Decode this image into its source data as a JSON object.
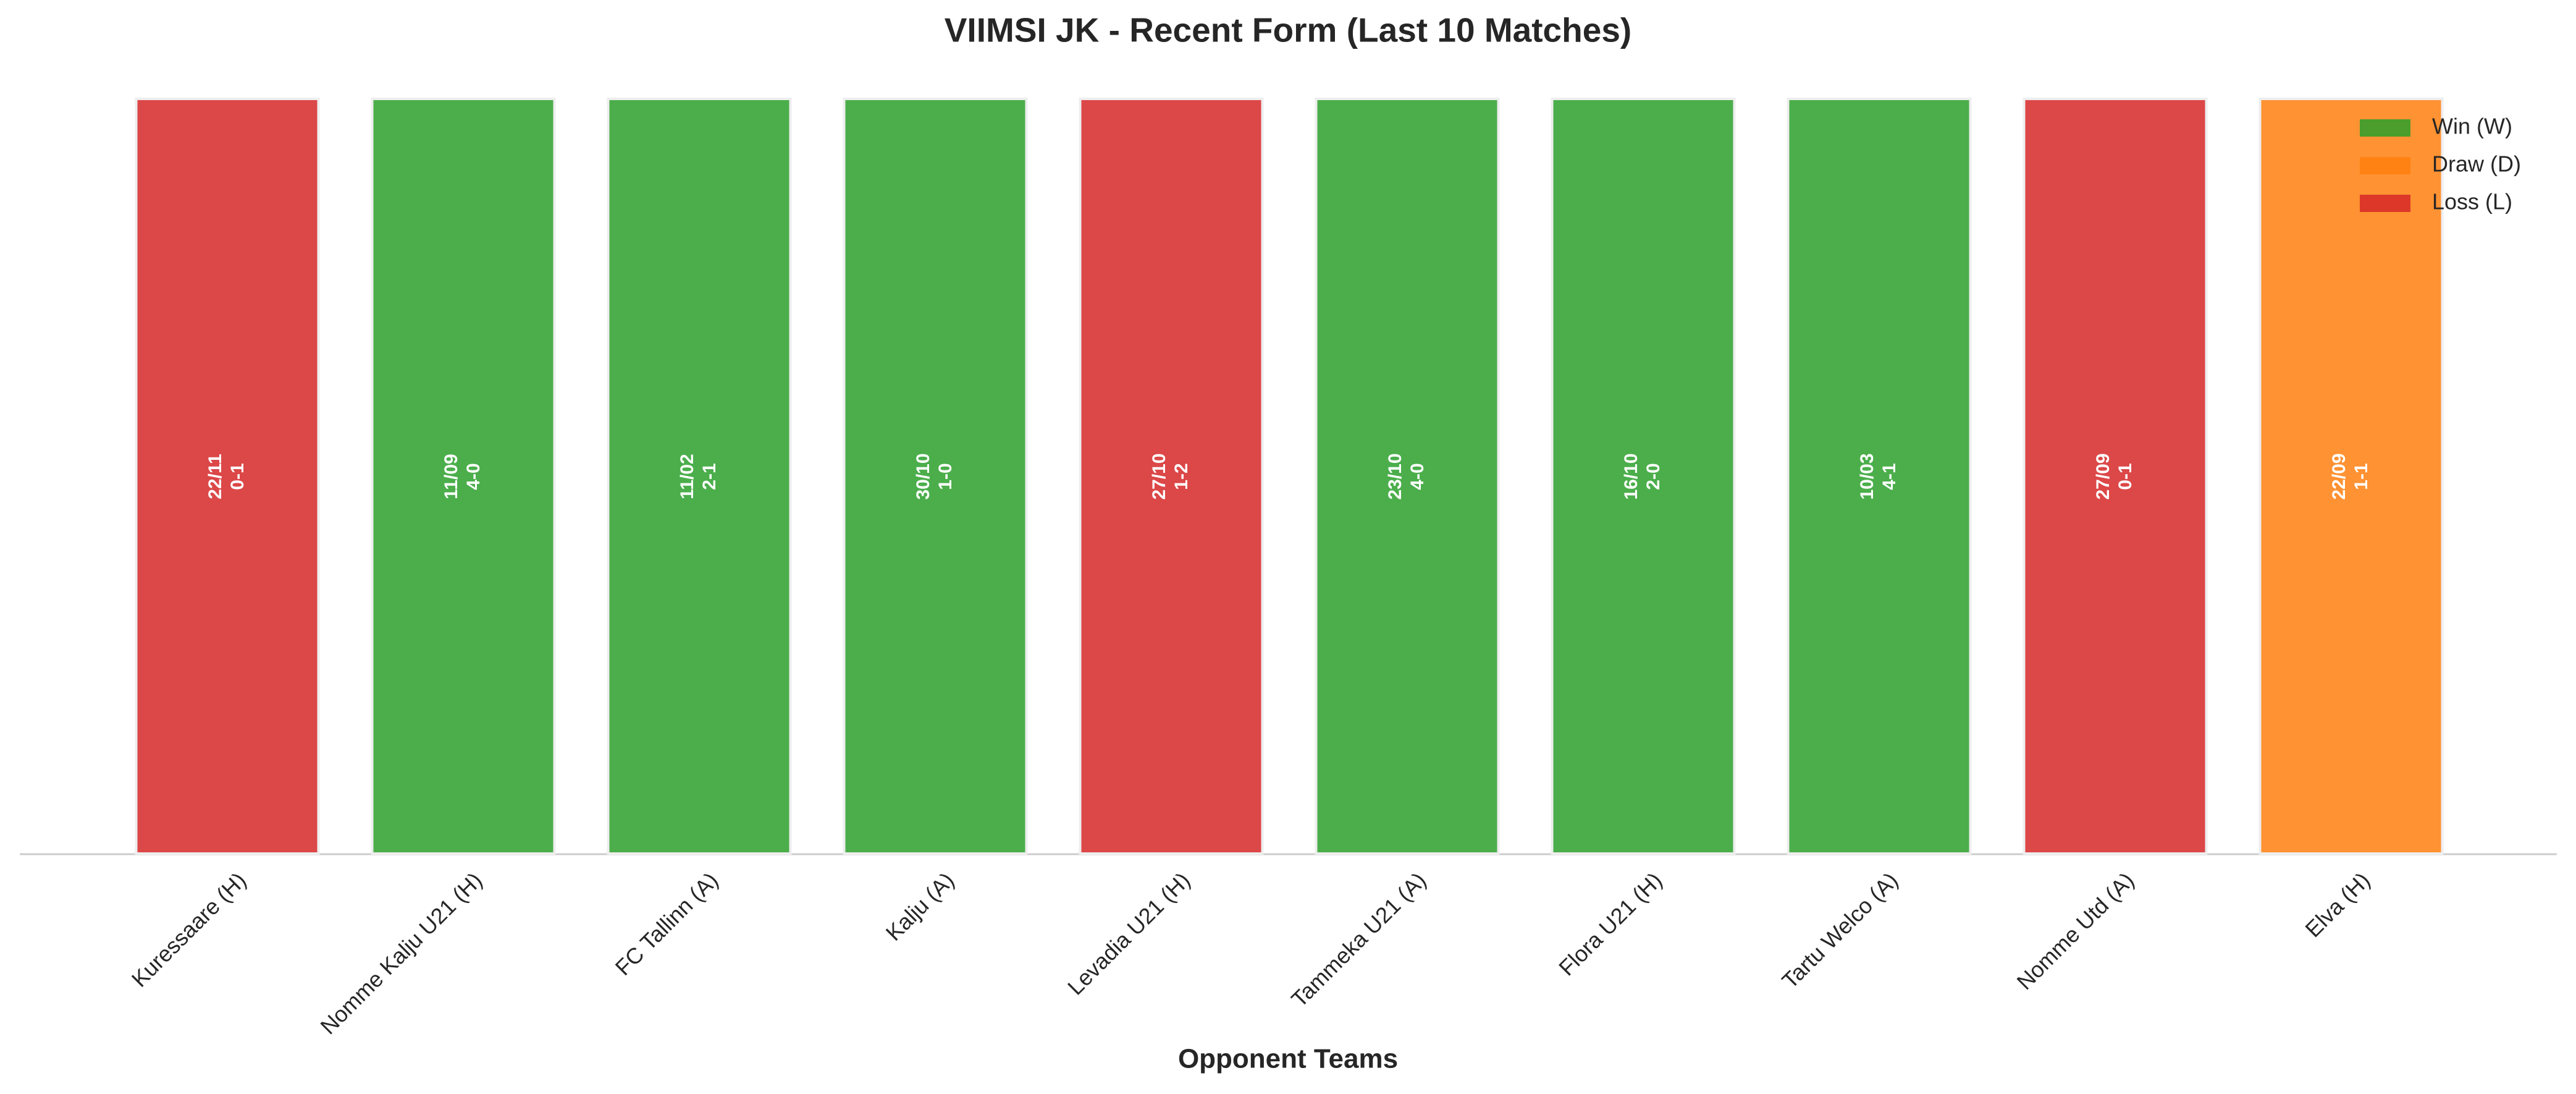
{
  "chart_data": {
    "type": "bar",
    "title": "VIIMSI JK - Recent Form (Last 10 Matches)",
    "x_label": "Opponent Teams",
    "categories": [
      "Kuressaare (H)",
      "Nomme Kalju U21 (H)",
      "FC Tallinn (A)",
      "Kalju (A)",
      "Levadia U21 (H)",
      "Tammeka U21 (A)",
      "Flora U21 (H)",
      "Tartu Welco (A)",
      "Nomme Utd (A)",
      "Elva (H)"
    ],
    "dates": [
      "22/11",
      "11/09",
      "11/02",
      "30/10",
      "27/10",
      "23/10",
      "16/10",
      "10/03",
      "27/09",
      "22/09"
    ],
    "scores": [
      "0-1",
      "4-0",
      "2-1",
      "1-0",
      "1-2",
      "4-0",
      "2-0",
      "4-1",
      "0-1",
      "1-1"
    ],
    "series": [
      {
        "name": "Win (W)",
        "color": "#2ca02c",
        "values": [
          null,
          1,
          1,
          1,
          null,
          1,
          1,
          1,
          null,
          null
        ]
      },
      {
        "name": "Draw (D)",
        "color": "#ff7f0e",
        "values": [
          null,
          null,
          null,
          null,
          null,
          null,
          null,
          null,
          null,
          1
        ]
      },
      {
        "name": "Loss (L)",
        "color": "#d62728",
        "values": [
          1,
          null,
          null,
          null,
          1,
          null,
          null,
          null,
          1,
          null
        ]
      }
    ],
    "ylim": [
      0,
      1
    ],
    "legend": "upper right"
  }
}
